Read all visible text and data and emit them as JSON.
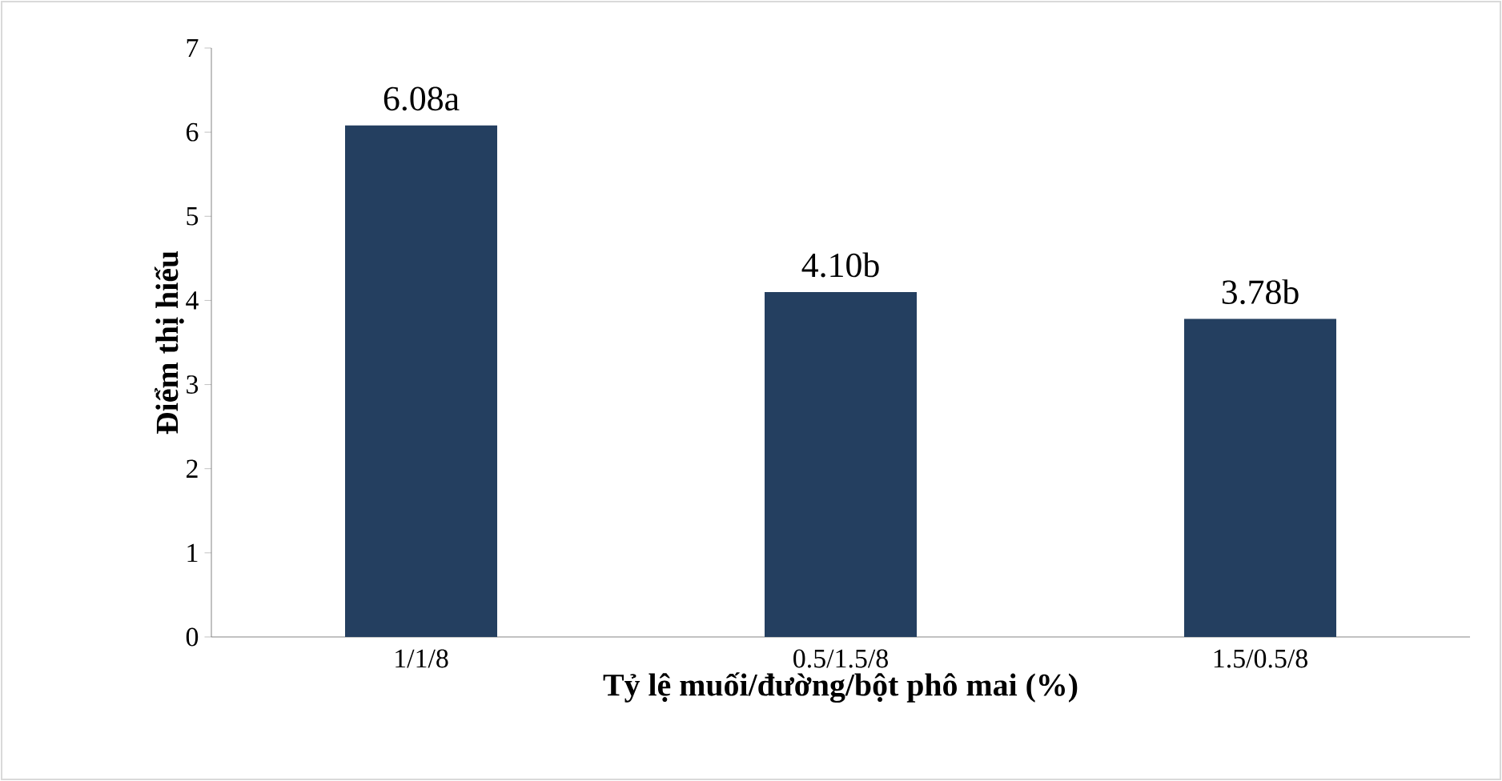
{
  "chart_data": {
    "type": "bar",
    "xlabel": "Tỷ lệ muối/đường/bột phô mai (%)",
    "ylabel": "Điểm thị hiếu",
    "categories": [
      "1/1/8",
      "0.5/1.5/8",
      "1.5/0.5/8"
    ],
    "values": [
      6.08,
      4.1,
      3.78
    ],
    "value_labels": [
      "6.08a",
      "4.10b",
      "3.78b"
    ],
    "color": "#243f60",
    "ylim": [
      0,
      7
    ],
    "yticks": [
      0,
      1,
      2,
      3,
      4,
      5,
      6,
      7
    ],
    "grid": false,
    "legend": false
  }
}
